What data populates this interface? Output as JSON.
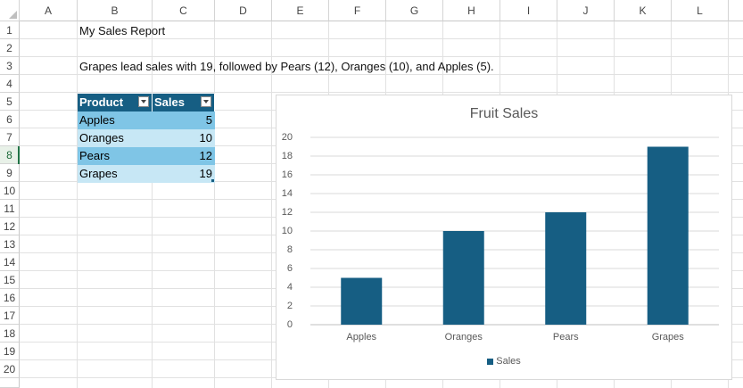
{
  "spreadsheet": {
    "columns": [
      "A",
      "B",
      "C",
      "D",
      "E",
      "F",
      "G",
      "H",
      "I",
      "J",
      "K",
      "L"
    ],
    "rows": [
      "1",
      "2",
      "3",
      "4",
      "5",
      "6",
      "7",
      "8",
      "9",
      "10",
      "11",
      "12",
      "13",
      "14",
      "15",
      "16",
      "17",
      "18",
      "19",
      "20"
    ],
    "active_row": "8",
    "cells": {
      "B1": "My Sales Report",
      "B3": "Grapes lead sales with 19, followed by Pears (12), Oranges (10), and Apples (5)."
    }
  },
  "table": {
    "headers": [
      "Product",
      "Sales"
    ],
    "rows": [
      {
        "product": "Apples",
        "sales": "5"
      },
      {
        "product": "Oranges",
        "sales": "10"
      },
      {
        "product": "Pears",
        "sales": "12"
      },
      {
        "product": "Grapes",
        "sales": "19"
      }
    ],
    "header_color": "#165e83",
    "band_colors": [
      "#7fc5e6",
      "#c7e7f5"
    ]
  },
  "chart_data": {
    "type": "bar",
    "title": "Fruit Sales",
    "categories": [
      "Apples",
      "Oranges",
      "Pears",
      "Grapes"
    ],
    "series": [
      {
        "name": "Sales",
        "values": [
          5,
          10,
          12,
          19
        ]
      }
    ],
    "ylim": [
      0,
      20
    ],
    "yticks": [
      "0",
      "2",
      "4",
      "6",
      "8",
      "10",
      "12",
      "14",
      "16",
      "18",
      "20"
    ],
    "grid": true,
    "legend": "bottom",
    "bar_color": "#165e83"
  }
}
